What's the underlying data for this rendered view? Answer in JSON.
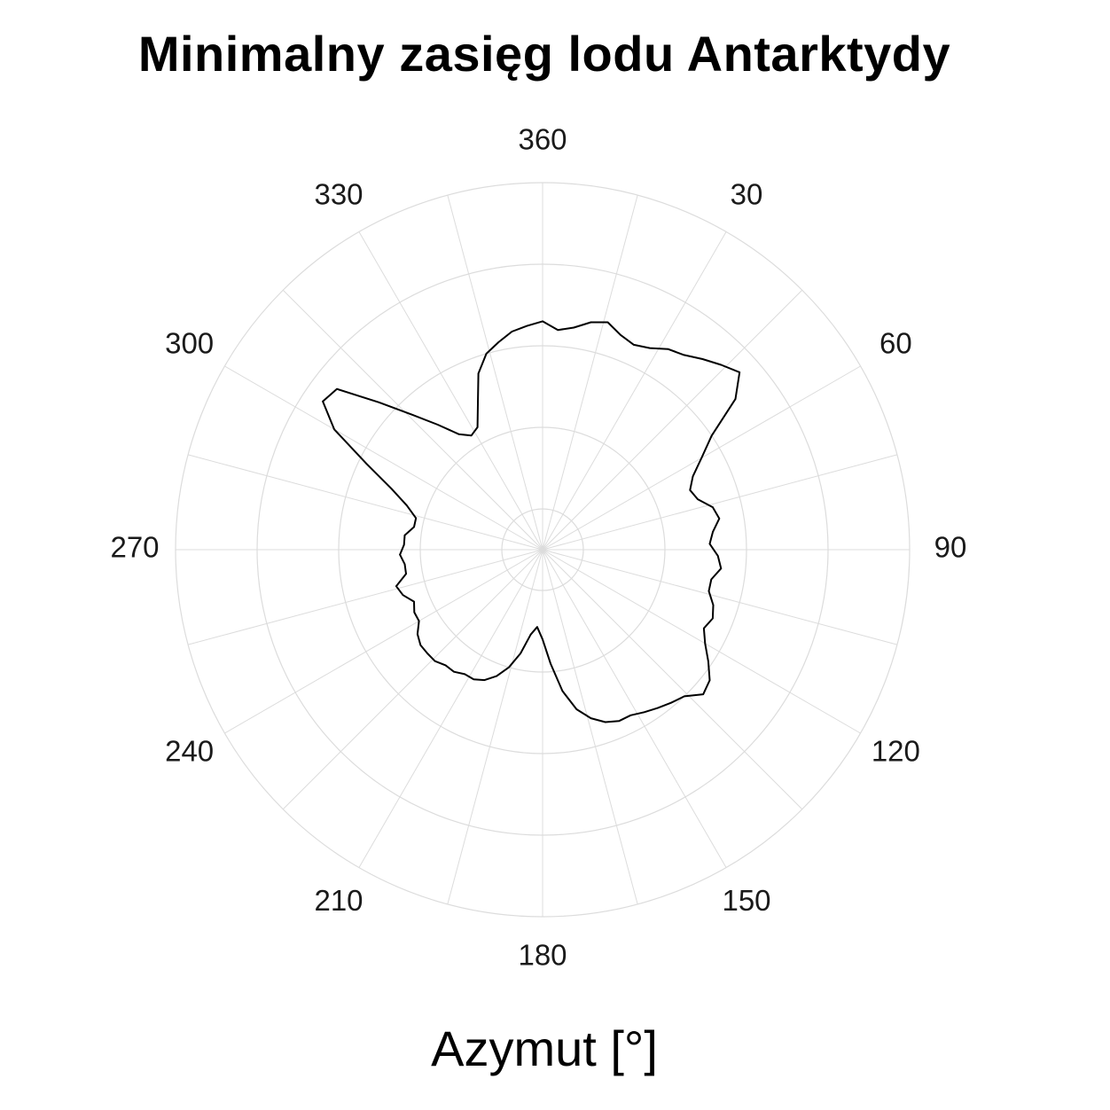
{
  "chart_data": {
    "type": "polar-line",
    "title": "Minimalny zasięg lodu Antarktydy",
    "xlabel": "Azymut [°]",
    "ylabel": "",
    "angle_axis": {
      "direction": "clockwise",
      "zero_at": "top",
      "ticks": [
        360,
        30,
        60,
        90,
        120,
        150,
        180,
        210,
        240,
        270,
        300,
        330
      ],
      "tick_labels": [
        "360",
        "30",
        "60",
        "90",
        "120",
        "150",
        "180",
        "210",
        "240",
        "270",
        "300",
        "330"
      ]
    },
    "radial_axis": {
      "range": [
        0,
        10
      ],
      "gridlines": [
        1,
        3,
        5,
        7,
        9
      ],
      "tick_labels_shown": false
    },
    "grid": true,
    "grid_color": "#dcdcdc",
    "line_color": "#000000",
    "series": [
      {
        "points": [
          [
            0,
            5.6
          ],
          [
            4,
            5.4
          ],
          [
            8,
            5.5
          ],
          [
            12,
            5.7
          ],
          [
            16,
            5.8
          ],
          [
            20,
            5.6
          ],
          [
            24,
            5.5
          ],
          [
            28,
            5.6
          ],
          [
            32,
            5.8
          ],
          [
            36,
            5.9
          ],
          [
            40,
            6.1
          ],
          [
            44,
            6.3
          ],
          [
            48,
            6.5
          ],
          [
            52,
            6.0
          ],
          [
            56,
            5.0
          ],
          [
            60,
            4.5
          ],
          [
            64,
            4.1
          ],
          [
            68,
            3.9
          ],
          [
            72,
            4.0
          ],
          [
            76,
            4.3
          ],
          [
            80,
            4.4
          ],
          [
            84,
            4.2
          ],
          [
            88,
            4.1
          ],
          [
            92,
            4.3
          ],
          [
            96,
            4.4
          ],
          [
            100,
            4.2
          ],
          [
            104,
            4.2
          ],
          [
            108,
            4.4
          ],
          [
            112,
            4.5
          ],
          [
            116,
            4.4
          ],
          [
            120,
            4.6
          ],
          [
            124,
            4.9
          ],
          [
            128,
            5.2
          ],
          [
            132,
            5.3
          ],
          [
            136,
            5.0
          ],
          [
            140,
            4.9
          ],
          [
            144,
            4.8
          ],
          [
            148,
            4.7
          ],
          [
            152,
            4.6
          ],
          [
            156,
            4.6
          ],
          [
            160,
            4.5
          ],
          [
            164,
            4.3
          ],
          [
            168,
            4.0
          ],
          [
            172,
            3.5
          ],
          [
            176,
            2.8
          ],
          [
            180,
            2.2
          ],
          [
            184,
            1.9
          ],
          [
            188,
            2.1
          ],
          [
            192,
            2.6
          ],
          [
            196,
            3.0
          ],
          [
            200,
            3.3
          ],
          [
            204,
            3.5
          ],
          [
            208,
            3.6
          ],
          [
            212,
            3.6
          ],
          [
            216,
            3.7
          ],
          [
            220,
            3.7
          ],
          [
            224,
            3.8
          ],
          [
            228,
            3.8
          ],
          [
            232,
            3.8
          ],
          [
            236,
            3.7
          ],
          [
            240,
            3.5
          ],
          [
            244,
            3.5
          ],
          [
            248,
            3.4
          ],
          [
            252,
            3.6
          ],
          [
            256,
            3.7
          ],
          [
            260,
            3.4
          ],
          [
            264,
            3.4
          ],
          [
            268,
            3.5
          ],
          [
            272,
            3.4
          ],
          [
            276,
            3.4
          ],
          [
            280,
            3.2
          ],
          [
            284,
            3.2
          ],
          [
            288,
            3.5
          ],
          [
            292,
            4.0
          ],
          [
            296,
            4.8
          ],
          [
            300,
            5.9
          ],
          [
            304,
            6.5
          ],
          [
            308,
            6.4
          ],
          [
            312,
            5.4
          ],
          [
            316,
            4.6
          ],
          [
            320,
            4.0
          ],
          [
            324,
            3.5
          ],
          [
            328,
            3.3
          ],
          [
            332,
            3.4
          ],
          [
            336,
            3.9
          ],
          [
            340,
            4.6
          ],
          [
            344,
            5.0
          ],
          [
            348,
            5.2
          ],
          [
            352,
            5.4
          ],
          [
            356,
            5.5
          ],
          [
            360,
            5.6
          ]
        ]
      }
    ]
  }
}
